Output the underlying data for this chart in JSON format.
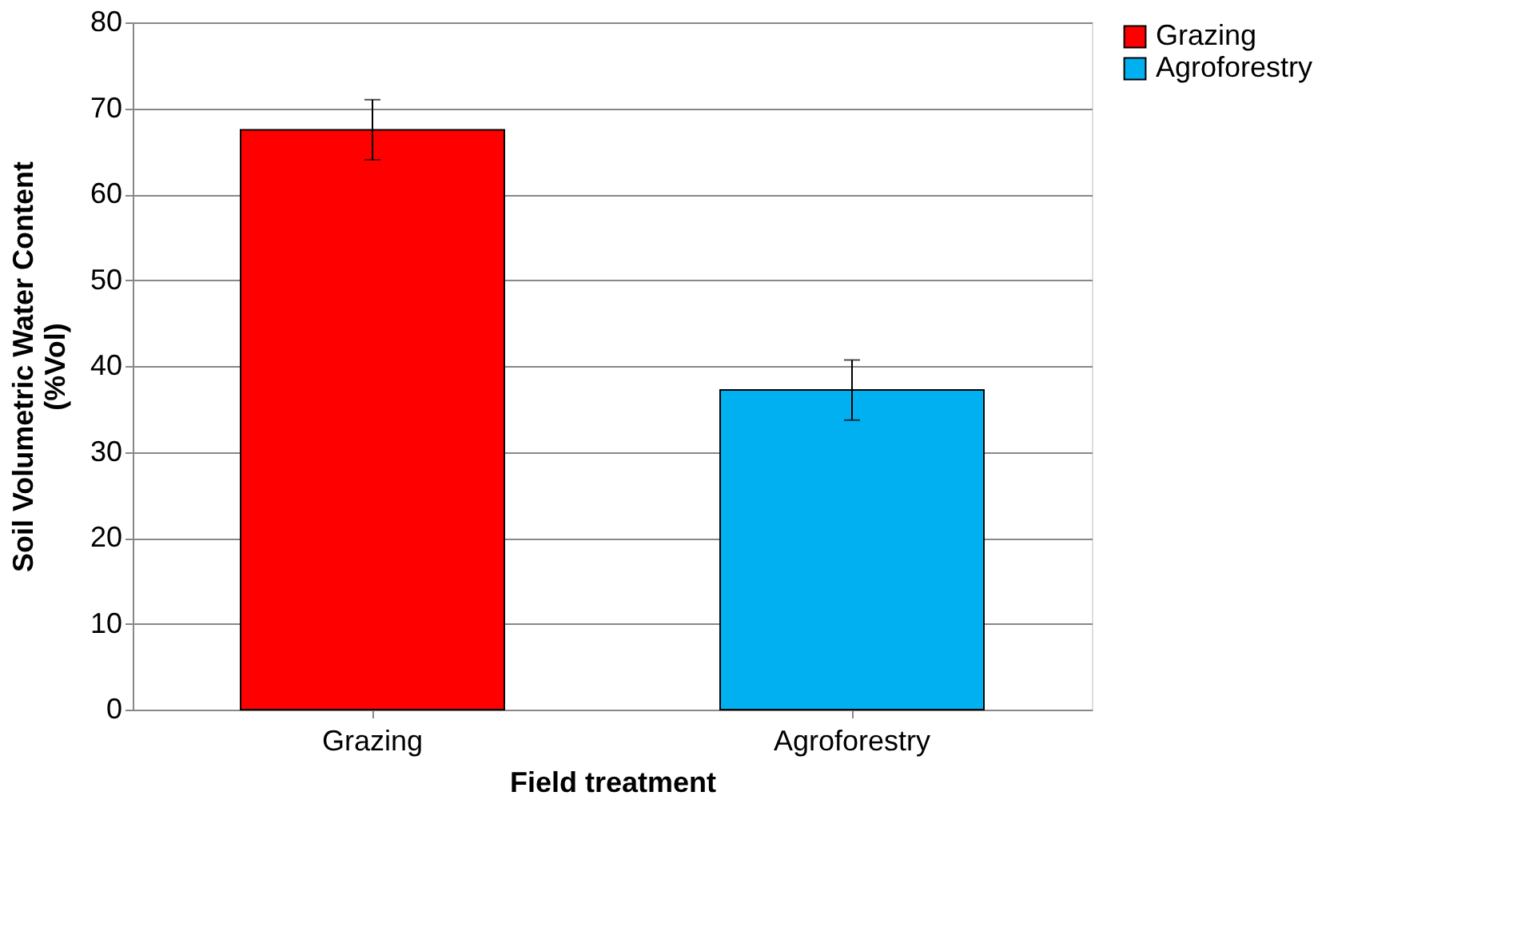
{
  "chart_data": {
    "type": "bar",
    "categories": [
      "Grazing",
      "Agroforestry"
    ],
    "xlabel": "Field treatment",
    "ylabel": "Soil Volumetric Water Content (%Vol)",
    "series": [
      {
        "name": "Grazing",
        "color": "#ff0000",
        "values": [
          67.5,
          null
        ],
        "errors": [
          3.5,
          null
        ]
      },
      {
        "name": "Agroforestry",
        "color": "#00b0f0",
        "values": [
          null,
          37.2
        ],
        "errors": [
          null,
          3.5
        ]
      }
    ],
    "ylim": [
      0,
      80
    ],
    "yticks": [
      0,
      10,
      20,
      30,
      40,
      50,
      60,
      70,
      80
    ],
    "grid": "y",
    "legend": "right"
  }
}
